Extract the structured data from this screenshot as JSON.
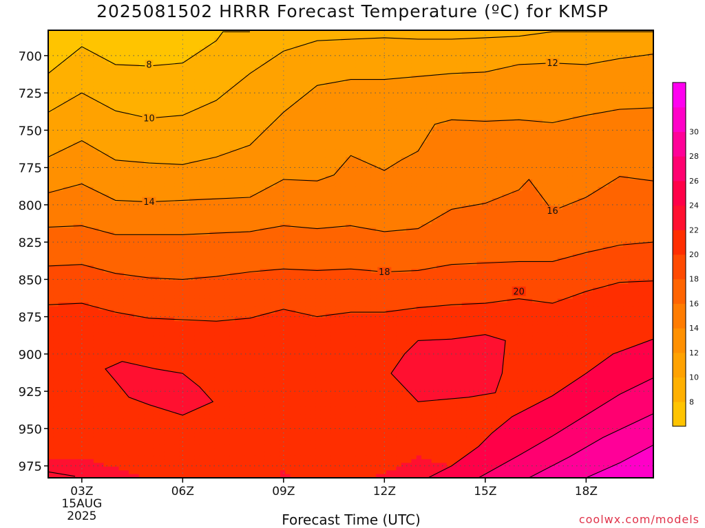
{
  "title": "2025081502 HRRR Forecast Temperature (ºC) for KMSP",
  "credit": "coolwx.com/models",
  "chart_data": {
    "type": "heatmap",
    "title": "2025081502 HRRR Forecast Temperature (ºC) for KMSP",
    "xlabel": "Forecast Time (UTC)",
    "ylabel": "",
    "x_range_hours_utc": [
      2,
      20
    ],
    "x_ticks": [
      {
        "hour": 3,
        "label": "03Z",
        "sublabels": [
          "15AUG",
          "2025"
        ]
      },
      {
        "hour": 6,
        "label": "06Z",
        "sublabels": []
      },
      {
        "hour": 9,
        "label": "09Z",
        "sublabels": []
      },
      {
        "hour": 12,
        "label": "12Z",
        "sublabels": []
      },
      {
        "hour": 15,
        "label": "15Z",
        "sublabels": []
      },
      {
        "hour": 18,
        "label": "18Z",
        "sublabels": []
      }
    ],
    "y_range_pressure_hpa": [
      683,
      983
    ],
    "y_ticks": [
      700,
      725,
      750,
      775,
      800,
      825,
      850,
      875,
      900,
      925,
      950,
      975
    ],
    "surface_pressure_hpa": 983,
    "grid": true,
    "colorbar": {
      "levels": [
        6,
        8,
        10,
        12,
        14,
        16,
        18,
        20,
        22,
        24,
        26,
        28,
        30,
        32
      ],
      "tick_labels": [
        8,
        10,
        12,
        14,
        16,
        18,
        20,
        22,
        24,
        26,
        28,
        30
      ],
      "colors": [
        "#ffc400",
        "#ffb000",
        "#ffa200",
        "#ff9000",
        "#ff7c00",
        "#ff6400",
        "#ff4a00",
        "#ff2e00",
        "#ff1030",
        "#ff0048",
        "#ff0070",
        "#ff0098",
        "#ff00c8",
        "#ff00f0"
      ]
    },
    "contours": [
      {
        "value": 8,
        "label": "8",
        "label_at": [
          5,
          706
        ],
        "points": [
          [
            2,
            712
          ],
          [
            3,
            694
          ],
          [
            4,
            706
          ],
          [
            5,
            707
          ],
          [
            6,
            705
          ],
          [
            7,
            690
          ],
          [
            7.2,
            684
          ],
          [
            8,
            684
          ]
        ]
      },
      {
        "value": 10,
        "label": "10",
        "label_at": [
          5,
          742
        ],
        "points": [
          [
            2,
            738
          ],
          [
            3,
            725
          ],
          [
            4,
            737
          ],
          [
            5,
            742
          ],
          [
            6,
            740
          ],
          [
            7,
            730
          ],
          [
            8,
            712
          ],
          [
            9,
            697
          ],
          [
            10,
            690
          ],
          [
            11,
            689
          ],
          [
            12,
            688
          ],
          [
            13,
            689
          ],
          [
            14,
            689
          ],
          [
            15,
            688
          ],
          [
            16,
            687
          ],
          [
            17,
            684
          ],
          [
            20,
            684
          ]
        ]
      },
      {
        "value": 12,
        "label": "12",
        "label_at": [
          17,
          705
        ],
        "points": [
          [
            2,
            768
          ],
          [
            3,
            757
          ],
          [
            4,
            770
          ],
          [
            5,
            772
          ],
          [
            6,
            773
          ],
          [
            7,
            768
          ],
          [
            8,
            760
          ],
          [
            9,
            738
          ],
          [
            10,
            720
          ],
          [
            11,
            716
          ],
          [
            12,
            716
          ],
          [
            13,
            714
          ],
          [
            14,
            712
          ],
          [
            15,
            711
          ],
          [
            16,
            706
          ],
          [
            17,
            705
          ],
          [
            18,
            706
          ],
          [
            19,
            702
          ],
          [
            20,
            699
          ]
        ]
      },
      {
        "value": 14,
        "label": "14",
        "label_at": [
          5,
          798
        ],
        "points": [
          [
            2,
            792
          ],
          [
            3,
            786
          ],
          [
            4,
            797
          ],
          [
            5,
            798
          ],
          [
            6,
            797
          ],
          [
            7,
            796
          ],
          [
            8,
            795
          ],
          [
            9,
            783
          ],
          [
            10,
            784
          ],
          [
            10.5,
            780
          ],
          [
            11,
            767
          ],
          [
            12,
            777
          ],
          [
            12.5,
            770
          ],
          [
            13,
            764
          ],
          [
            13.5,
            746
          ],
          [
            14,
            743
          ],
          [
            15,
            744
          ],
          [
            16,
            743
          ],
          [
            17,
            745
          ],
          [
            18,
            740
          ],
          [
            19,
            736
          ],
          [
            20,
            735
          ]
        ]
      },
      {
        "value": 16,
        "label": "16",
        "label_at": [
          17,
          804
        ],
        "points": [
          [
            2,
            815
          ],
          [
            3,
            814
          ],
          [
            4,
            820
          ],
          [
            5,
            820
          ],
          [
            6,
            820
          ],
          [
            7,
            819
          ],
          [
            8,
            818
          ],
          [
            9,
            814
          ],
          [
            10,
            816
          ],
          [
            11,
            814
          ],
          [
            12,
            818
          ],
          [
            13,
            816
          ],
          [
            14,
            803
          ],
          [
            15,
            799
          ],
          [
            16,
            790
          ],
          [
            16.3,
            783
          ],
          [
            17,
            804
          ],
          [
            18,
            795
          ],
          [
            19,
            781
          ],
          [
            20,
            784
          ]
        ]
      },
      {
        "value": 18,
        "label": "18",
        "label_at": [
          12,
          845
        ],
        "points": [
          [
            2,
            841
          ],
          [
            3,
            840
          ],
          [
            4,
            846
          ],
          [
            5,
            849
          ],
          [
            6,
            850
          ],
          [
            7,
            848
          ],
          [
            8,
            845
          ],
          [
            9,
            843
          ],
          [
            10,
            844
          ],
          [
            11,
            843
          ],
          [
            12,
            845
          ],
          [
            13,
            844
          ],
          [
            14,
            840
          ],
          [
            15,
            839
          ],
          [
            16,
            838
          ],
          [
            17,
            838
          ],
          [
            18,
            832
          ],
          [
            19,
            827
          ],
          [
            20,
            825
          ]
        ]
      },
      {
        "value": 20,
        "label": "20",
        "label_at": [
          16,
          858
        ],
        "points": [
          [
            2,
            867
          ],
          [
            3,
            866
          ],
          [
            4,
            872
          ],
          [
            5,
            876
          ],
          [
            6,
            877
          ],
          [
            7,
            878
          ],
          [
            8,
            876
          ],
          [
            9,
            870
          ],
          [
            10,
            875
          ],
          [
            11,
            872
          ],
          [
            12,
            872
          ],
          [
            13,
            869
          ],
          [
            14,
            867
          ],
          [
            15,
            866
          ],
          [
            16,
            863
          ],
          [
            17,
            866
          ],
          [
            18,
            858
          ],
          [
            19,
            852
          ],
          [
            20,
            851
          ]
        ]
      },
      {
        "value": 22,
        "label": "",
        "closed": true,
        "points": [
          [
            3.7,
            910
          ],
          [
            4,
            918
          ],
          [
            4.4,
            929
          ],
          [
            5,
            934
          ],
          [
            6,
            941
          ],
          [
            6.9,
            932
          ],
          [
            6.5,
            922
          ],
          [
            6,
            913
          ],
          [
            5.2,
            910
          ],
          [
            4.2,
            905
          ]
        ]
      },
      {
        "value": 22,
        "label": "",
        "closed": true,
        "points": [
          [
            12.2,
            913
          ],
          [
            12.6,
            900
          ],
          [
            13,
            891
          ],
          [
            14,
            890
          ],
          [
            15,
            887
          ],
          [
            15.6,
            891
          ],
          [
            15.5,
            913
          ],
          [
            15.3,
            926
          ],
          [
            14.5,
            929
          ],
          [
            13,
            932
          ]
        ]
      },
      {
        "value": 24,
        "label": "",
        "points": [
          [
            13.3,
            983
          ],
          [
            14,
            975
          ],
          [
            14.8,
            962
          ],
          [
            15.2,
            953
          ],
          [
            15.8,
            942
          ],
          [
            17,
            928
          ],
          [
            18,
            913
          ],
          [
            18.8,
            900
          ],
          [
            20,
            890
          ]
        ]
      },
      {
        "value": 26,
        "label": "",
        "points": [
          [
            14.8,
            983
          ],
          [
            16,
            968
          ],
          [
            17,
            955
          ],
          [
            18,
            941
          ],
          [
            19,
            927
          ],
          [
            20,
            916
          ]
        ]
      },
      {
        "value": 28,
        "label": "",
        "points": [
          [
            16.3,
            983
          ],
          [
            17.5,
            969
          ],
          [
            18.5,
            956
          ],
          [
            20,
            940
          ]
        ]
      },
      {
        "value": 30,
        "label": "",
        "points": [
          [
            18,
            983
          ],
          [
            19,
            973
          ],
          [
            20,
            961
          ]
        ]
      },
      {
        "value": 22,
        "label": "",
        "points": [
          [
            2,
            979
          ],
          [
            2.8,
            982
          ]
        ]
      }
    ]
  }
}
